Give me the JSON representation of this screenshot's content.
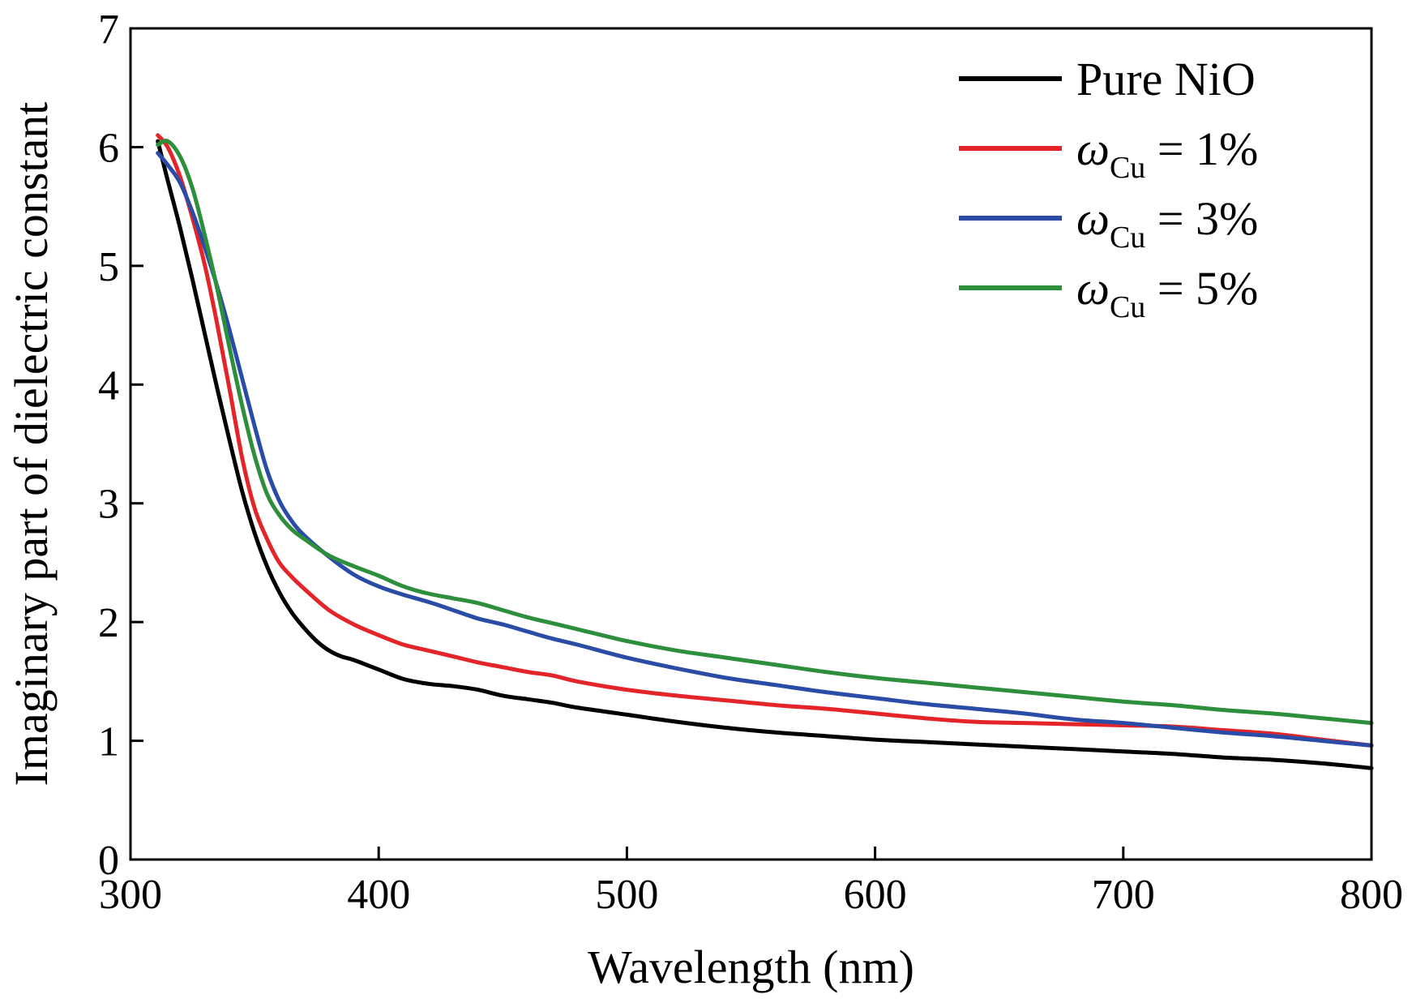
{
  "chart_data": {
    "type": "line",
    "title": "",
    "xlabel": "Wavelength (nm)",
    "ylabel": "Imaginary part of dielectric constant",
    "xlim": [
      300,
      800
    ],
    "ylim": [
      0,
      7
    ],
    "xticks": [
      300,
      400,
      500,
      600,
      700,
      800
    ],
    "yticks": [
      0,
      1,
      2,
      3,
      4,
      5,
      6,
      7
    ],
    "grid": false,
    "legend_position": "top-right",
    "series": [
      {
        "name": "Pure NiO",
        "legend": {
          "prefix": "Pure NiO",
          "sub": "",
          "suffix": ""
        },
        "color": "#000000",
        "x": [
          311,
          315,
          320,
          325,
          330,
          335,
          340,
          345,
          350,
          355,
          360,
          365,
          370,
          375,
          380,
          385,
          390,
          400,
          410,
          420,
          430,
          440,
          450,
          460,
          470,
          480,
          500,
          520,
          540,
          560,
          580,
          600,
          620,
          640,
          660,
          680,
          700,
          720,
          740,
          760,
          780,
          800
        ],
        "y": [
          6.05,
          5.72,
          5.32,
          4.88,
          4.42,
          3.96,
          3.52,
          3.1,
          2.75,
          2.47,
          2.25,
          2.08,
          1.95,
          1.84,
          1.76,
          1.71,
          1.68,
          1.6,
          1.52,
          1.48,
          1.46,
          1.43,
          1.38,
          1.35,
          1.32,
          1.28,
          1.22,
          1.16,
          1.11,
          1.07,
          1.04,
          1.01,
          0.99,
          0.97,
          0.95,
          0.93,
          0.91,
          0.89,
          0.86,
          0.84,
          0.81,
          0.77
        ]
      },
      {
        "name": "ωCu = 1%",
        "legend": {
          "prefix": "ω",
          "sub": "Cu",
          "suffix": " = 1%"
        },
        "color": "#e3252a",
        "x": [
          311,
          315,
          320,
          325,
          330,
          335,
          340,
          345,
          350,
          355,
          360,
          365,
          370,
          380,
          390,
          400,
          410,
          420,
          430,
          440,
          450,
          460,
          470,
          480,
          500,
          520,
          540,
          560,
          580,
          600,
          620,
          640,
          660,
          680,
          700,
          720,
          740,
          760,
          780,
          800
        ],
        "y": [
          6.1,
          6.0,
          5.75,
          5.4,
          5.0,
          4.5,
          3.95,
          3.38,
          2.96,
          2.7,
          2.5,
          2.38,
          2.28,
          2.1,
          1.98,
          1.89,
          1.81,
          1.76,
          1.71,
          1.66,
          1.62,
          1.58,
          1.55,
          1.5,
          1.43,
          1.38,
          1.34,
          1.3,
          1.27,
          1.23,
          1.19,
          1.16,
          1.15,
          1.14,
          1.13,
          1.12,
          1.09,
          1.06,
          1.01,
          0.96
        ]
      },
      {
        "name": "ωCu = 3%",
        "legend": {
          "prefix": "ω",
          "sub": "Cu",
          "suffix": " = 3%"
        },
        "color": "#2a4ba6",
        "x": [
          311,
          315,
          320,
          325,
          330,
          335,
          340,
          345,
          350,
          355,
          360,
          365,
          370,
          380,
          390,
          400,
          410,
          420,
          430,
          440,
          450,
          460,
          470,
          480,
          500,
          520,
          540,
          560,
          580,
          600,
          620,
          640,
          660,
          680,
          700,
          720,
          740,
          760,
          780,
          800
        ],
        "y": [
          5.95,
          5.85,
          5.7,
          5.45,
          5.15,
          4.82,
          4.45,
          4.05,
          3.65,
          3.28,
          3.02,
          2.85,
          2.73,
          2.55,
          2.4,
          2.3,
          2.23,
          2.17,
          2.1,
          2.03,
          1.98,
          1.92,
          1.86,
          1.81,
          1.7,
          1.61,
          1.53,
          1.47,
          1.41,
          1.36,
          1.31,
          1.27,
          1.23,
          1.18,
          1.15,
          1.11,
          1.07,
          1.04,
          1.0,
          0.96
        ]
      },
      {
        "name": "ωCu = 5%",
        "legend": {
          "prefix": "ω",
          "sub": "Cu",
          "suffix": " = 5%"
        },
        "color": "#2d8f3c",
        "x": [
          311,
          315,
          320,
          325,
          330,
          335,
          340,
          345,
          350,
          355,
          360,
          365,
          370,
          380,
          390,
          400,
          410,
          420,
          430,
          440,
          450,
          460,
          470,
          480,
          500,
          520,
          540,
          560,
          580,
          600,
          620,
          640,
          660,
          680,
          700,
          720,
          740,
          760,
          780,
          800
        ],
        "y": [
          6.02,
          6.05,
          5.92,
          5.65,
          5.25,
          4.8,
          4.3,
          3.82,
          3.4,
          3.08,
          2.9,
          2.78,
          2.7,
          2.56,
          2.47,
          2.39,
          2.3,
          2.24,
          2.2,
          2.16,
          2.1,
          2.04,
          1.99,
          1.94,
          1.84,
          1.76,
          1.7,
          1.64,
          1.58,
          1.53,
          1.49,
          1.45,
          1.41,
          1.37,
          1.33,
          1.3,
          1.26,
          1.23,
          1.19,
          1.15
        ]
      }
    ]
  }
}
